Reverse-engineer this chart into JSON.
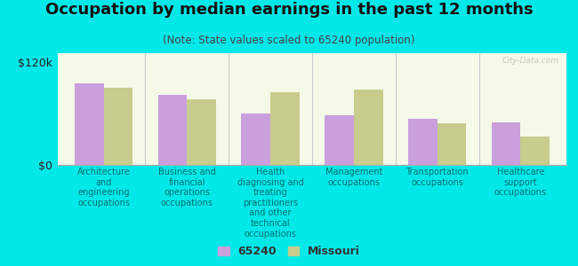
{
  "title": "Occupation by median earnings in the past 12 months",
  "subtitle": "(Note: State values scaled to 65240 population)",
  "background_color": "#00e8e8",
  "plot_bg_top": "#f5f9e8",
  "plot_bg_bottom": "#ffffff",
  "categories": [
    "Architecture\nand\nengineering\noccupations",
    "Business and\nfinancial\noperations\noccupations",
    "Health\ndiagnosing and\ntreating\npractitioners\nand other\ntechnical\noccupations",
    "Management\noccupations",
    "Transportation\noccupations",
    "Healthcare\nsupport\noccupations"
  ],
  "values_65240": [
    95000,
    82000,
    60000,
    58000,
    54000,
    50000
  ],
  "values_missouri": [
    90000,
    76000,
    85000,
    88000,
    48000,
    33000
  ],
  "color_65240": "#c9a0dc",
  "color_missouri": "#c8cc8c",
  "legend_65240": "65240",
  "legend_missouri": "Missouri",
  "yticks": [
    0,
    120000
  ],
  "ytick_labels": [
    "$0",
    "$120k"
  ],
  "ylim": [
    0,
    130000
  ],
  "bar_width": 0.35,
  "watermark": "City-Data.com",
  "title_fontsize": 13,
  "subtitle_fontsize": 8.5,
  "xlabel_fontsize": 7,
  "ylabel_fontsize": 9
}
